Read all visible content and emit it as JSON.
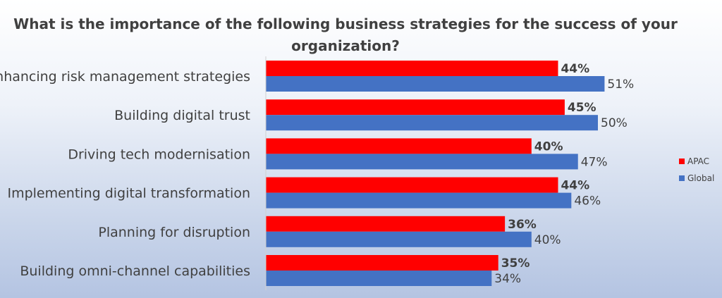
{
  "chart_data": {
    "type": "bar",
    "orientation": "horizontal",
    "title_lines": [
      "What is the importance of the following business strategies for the success of your",
      "organization?"
    ],
    "categories": [
      "Enhancing risk management strategies",
      "Building digital trust",
      "Driving tech modernisation",
      "Implementing digital transformation",
      "Planning for disruption",
      "Building omni-channel capabilities"
    ],
    "series": [
      {
        "name": "APAC",
        "color": "#ff0000",
        "values": [
          44,
          45,
          40,
          44,
          36,
          35
        ],
        "labels": [
          "44%",
          "45%",
          "40%",
          "44%",
          "36%",
          "35%"
        ]
      },
      {
        "name": "Global",
        "color": "#4472c4",
        "values": [
          51,
          50,
          47,
          46,
          40,
          34
        ],
        "labels": [
          "51%",
          "50%",
          "47%",
          "46%",
          "40%",
          "34%"
        ]
      }
    ],
    "xlim": [
      0,
      55
    ],
    "grid": false,
    "legend_position": "right"
  }
}
